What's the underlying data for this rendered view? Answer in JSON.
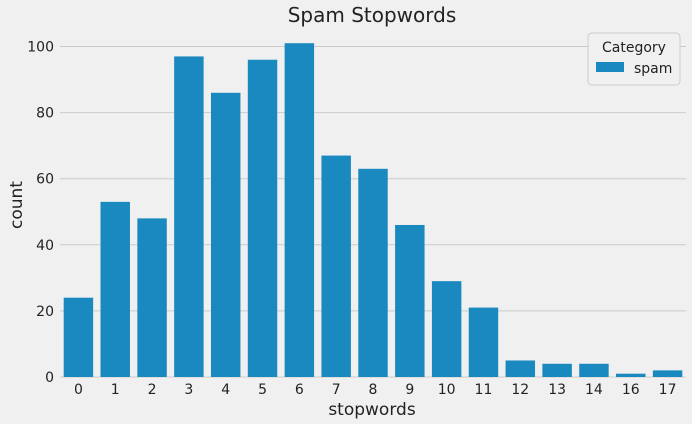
{
  "chart_data": {
    "type": "bar",
    "title": "Spam Stopwords",
    "xlabel": "stopwords",
    "ylabel": "count",
    "categories": [
      "0",
      "1",
      "2",
      "3",
      "4",
      "5",
      "6",
      "7",
      "8",
      "9",
      "10",
      "11",
      "12",
      "13",
      "14",
      "16",
      "17"
    ],
    "series": [
      {
        "name": "spam",
        "values": [
          24,
          53,
          48,
          97,
          86,
          96,
          101,
          67,
          63,
          46,
          29,
          21,
          5,
          4,
          4,
          1,
          2
        ]
      }
    ],
    "ylim": [
      0,
      105
    ],
    "yticks": [
      0,
      20,
      40,
      60,
      80,
      100
    ],
    "grid": "horizontal",
    "legend": {
      "title": "Category",
      "placement": "top-right"
    },
    "colors": {
      "bar": "#1a89c0",
      "background": "#f0f0f0",
      "grid": "#cbcbcb"
    }
  }
}
